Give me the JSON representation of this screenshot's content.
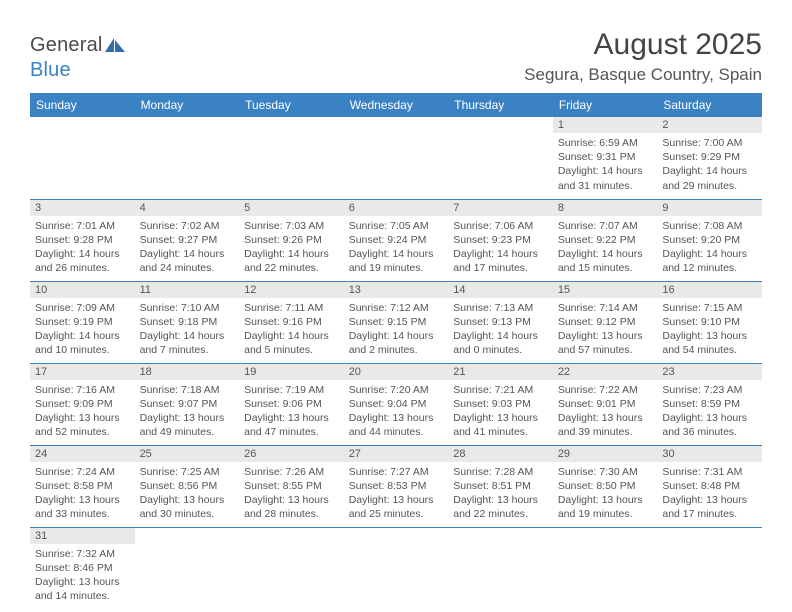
{
  "header": {
    "logo_general": "General",
    "logo_blue": "Blue",
    "month_title": "August 2025",
    "location": "Segura, Basque Country, Spain"
  },
  "day_labels": [
    "Sunday",
    "Monday",
    "Tuesday",
    "Wednesday",
    "Thursday",
    "Friday",
    "Saturday"
  ],
  "colors": {
    "header_bg": "#3b82c4",
    "header_text": "#ffffff",
    "daynum_bg": "#e9e9e9",
    "text": "#555555",
    "row_divider": "#3b82c4"
  },
  "weeks": [
    [
      {
        "day": "",
        "sunrise": "",
        "sunset": "",
        "daylight1": "",
        "daylight2": ""
      },
      {
        "day": "",
        "sunrise": "",
        "sunset": "",
        "daylight1": "",
        "daylight2": ""
      },
      {
        "day": "",
        "sunrise": "",
        "sunset": "",
        "daylight1": "",
        "daylight2": ""
      },
      {
        "day": "",
        "sunrise": "",
        "sunset": "",
        "daylight1": "",
        "daylight2": ""
      },
      {
        "day": "",
        "sunrise": "",
        "sunset": "",
        "daylight1": "",
        "daylight2": ""
      },
      {
        "day": "1",
        "sunrise": "Sunrise: 6:59 AM",
        "sunset": "Sunset: 9:31 PM",
        "daylight1": "Daylight: 14 hours",
        "daylight2": "and 31 minutes."
      },
      {
        "day": "2",
        "sunrise": "Sunrise: 7:00 AM",
        "sunset": "Sunset: 9:29 PM",
        "daylight1": "Daylight: 14 hours",
        "daylight2": "and 29 minutes."
      }
    ],
    [
      {
        "day": "3",
        "sunrise": "Sunrise: 7:01 AM",
        "sunset": "Sunset: 9:28 PM",
        "daylight1": "Daylight: 14 hours",
        "daylight2": "and 26 minutes."
      },
      {
        "day": "4",
        "sunrise": "Sunrise: 7:02 AM",
        "sunset": "Sunset: 9:27 PM",
        "daylight1": "Daylight: 14 hours",
        "daylight2": "and 24 minutes."
      },
      {
        "day": "5",
        "sunrise": "Sunrise: 7:03 AM",
        "sunset": "Sunset: 9:26 PM",
        "daylight1": "Daylight: 14 hours",
        "daylight2": "and 22 minutes."
      },
      {
        "day": "6",
        "sunrise": "Sunrise: 7:05 AM",
        "sunset": "Sunset: 9:24 PM",
        "daylight1": "Daylight: 14 hours",
        "daylight2": "and 19 minutes."
      },
      {
        "day": "7",
        "sunrise": "Sunrise: 7:06 AM",
        "sunset": "Sunset: 9:23 PM",
        "daylight1": "Daylight: 14 hours",
        "daylight2": "and 17 minutes."
      },
      {
        "day": "8",
        "sunrise": "Sunrise: 7:07 AM",
        "sunset": "Sunset: 9:22 PM",
        "daylight1": "Daylight: 14 hours",
        "daylight2": "and 15 minutes."
      },
      {
        "day": "9",
        "sunrise": "Sunrise: 7:08 AM",
        "sunset": "Sunset: 9:20 PM",
        "daylight1": "Daylight: 14 hours",
        "daylight2": "and 12 minutes."
      }
    ],
    [
      {
        "day": "10",
        "sunrise": "Sunrise: 7:09 AM",
        "sunset": "Sunset: 9:19 PM",
        "daylight1": "Daylight: 14 hours",
        "daylight2": "and 10 minutes."
      },
      {
        "day": "11",
        "sunrise": "Sunrise: 7:10 AM",
        "sunset": "Sunset: 9:18 PM",
        "daylight1": "Daylight: 14 hours",
        "daylight2": "and 7 minutes."
      },
      {
        "day": "12",
        "sunrise": "Sunrise: 7:11 AM",
        "sunset": "Sunset: 9:16 PM",
        "daylight1": "Daylight: 14 hours",
        "daylight2": "and 5 minutes."
      },
      {
        "day": "13",
        "sunrise": "Sunrise: 7:12 AM",
        "sunset": "Sunset: 9:15 PM",
        "daylight1": "Daylight: 14 hours",
        "daylight2": "and 2 minutes."
      },
      {
        "day": "14",
        "sunrise": "Sunrise: 7:13 AM",
        "sunset": "Sunset: 9:13 PM",
        "daylight1": "Daylight: 14 hours",
        "daylight2": "and 0 minutes."
      },
      {
        "day": "15",
        "sunrise": "Sunrise: 7:14 AM",
        "sunset": "Sunset: 9:12 PM",
        "daylight1": "Daylight: 13 hours",
        "daylight2": "and 57 minutes."
      },
      {
        "day": "16",
        "sunrise": "Sunrise: 7:15 AM",
        "sunset": "Sunset: 9:10 PM",
        "daylight1": "Daylight: 13 hours",
        "daylight2": "and 54 minutes."
      }
    ],
    [
      {
        "day": "17",
        "sunrise": "Sunrise: 7:16 AM",
        "sunset": "Sunset: 9:09 PM",
        "daylight1": "Daylight: 13 hours",
        "daylight2": "and 52 minutes."
      },
      {
        "day": "18",
        "sunrise": "Sunrise: 7:18 AM",
        "sunset": "Sunset: 9:07 PM",
        "daylight1": "Daylight: 13 hours",
        "daylight2": "and 49 minutes."
      },
      {
        "day": "19",
        "sunrise": "Sunrise: 7:19 AM",
        "sunset": "Sunset: 9:06 PM",
        "daylight1": "Daylight: 13 hours",
        "daylight2": "and 47 minutes."
      },
      {
        "day": "20",
        "sunrise": "Sunrise: 7:20 AM",
        "sunset": "Sunset: 9:04 PM",
        "daylight1": "Daylight: 13 hours",
        "daylight2": "and 44 minutes."
      },
      {
        "day": "21",
        "sunrise": "Sunrise: 7:21 AM",
        "sunset": "Sunset: 9:03 PM",
        "daylight1": "Daylight: 13 hours",
        "daylight2": "and 41 minutes."
      },
      {
        "day": "22",
        "sunrise": "Sunrise: 7:22 AM",
        "sunset": "Sunset: 9:01 PM",
        "daylight1": "Daylight: 13 hours",
        "daylight2": "and 39 minutes."
      },
      {
        "day": "23",
        "sunrise": "Sunrise: 7:23 AM",
        "sunset": "Sunset: 8:59 PM",
        "daylight1": "Daylight: 13 hours",
        "daylight2": "and 36 minutes."
      }
    ],
    [
      {
        "day": "24",
        "sunrise": "Sunrise: 7:24 AM",
        "sunset": "Sunset: 8:58 PM",
        "daylight1": "Daylight: 13 hours",
        "daylight2": "and 33 minutes."
      },
      {
        "day": "25",
        "sunrise": "Sunrise: 7:25 AM",
        "sunset": "Sunset: 8:56 PM",
        "daylight1": "Daylight: 13 hours",
        "daylight2": "and 30 minutes."
      },
      {
        "day": "26",
        "sunrise": "Sunrise: 7:26 AM",
        "sunset": "Sunset: 8:55 PM",
        "daylight1": "Daylight: 13 hours",
        "daylight2": "and 28 minutes."
      },
      {
        "day": "27",
        "sunrise": "Sunrise: 7:27 AM",
        "sunset": "Sunset: 8:53 PM",
        "daylight1": "Daylight: 13 hours",
        "daylight2": "and 25 minutes."
      },
      {
        "day": "28",
        "sunrise": "Sunrise: 7:28 AM",
        "sunset": "Sunset: 8:51 PM",
        "daylight1": "Daylight: 13 hours",
        "daylight2": "and 22 minutes."
      },
      {
        "day": "29",
        "sunrise": "Sunrise: 7:30 AM",
        "sunset": "Sunset: 8:50 PM",
        "daylight1": "Daylight: 13 hours",
        "daylight2": "and 19 minutes."
      },
      {
        "day": "30",
        "sunrise": "Sunrise: 7:31 AM",
        "sunset": "Sunset: 8:48 PM",
        "daylight1": "Daylight: 13 hours",
        "daylight2": "and 17 minutes."
      }
    ],
    [
      {
        "day": "31",
        "sunrise": "Sunrise: 7:32 AM",
        "sunset": "Sunset: 8:46 PM",
        "daylight1": "Daylight: 13 hours",
        "daylight2": "and 14 minutes."
      },
      {
        "day": "",
        "sunrise": "",
        "sunset": "",
        "daylight1": "",
        "daylight2": ""
      },
      {
        "day": "",
        "sunrise": "",
        "sunset": "",
        "daylight1": "",
        "daylight2": ""
      },
      {
        "day": "",
        "sunrise": "",
        "sunset": "",
        "daylight1": "",
        "daylight2": ""
      },
      {
        "day": "",
        "sunrise": "",
        "sunset": "",
        "daylight1": "",
        "daylight2": ""
      },
      {
        "day": "",
        "sunrise": "",
        "sunset": "",
        "daylight1": "",
        "daylight2": ""
      },
      {
        "day": "",
        "sunrise": "",
        "sunset": "",
        "daylight1": "",
        "daylight2": ""
      }
    ]
  ]
}
